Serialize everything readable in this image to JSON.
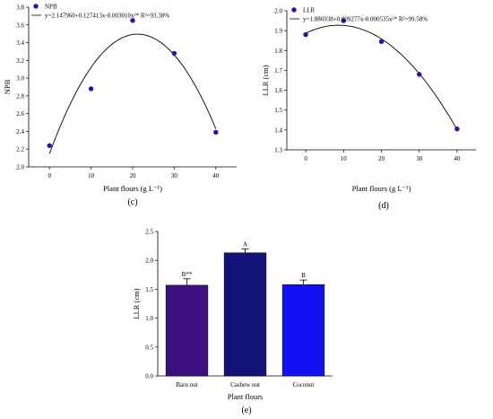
{
  "chart_data": [
    {
      "type": "scatter",
      "id": "c",
      "panel_label": "(c)",
      "xlabel": "Plant flours (g L⁻¹)",
      "ylabel": "NPB",
      "xlim": [
        -5,
        45
      ],
      "ylim": [
        2.0,
        3.8
      ],
      "x_ticks": [
        0,
        10,
        20,
        30,
        40
      ],
      "y_ticks": [
        2.0,
        2.2,
        2.4,
        2.6,
        2.8,
        3.0,
        3.2,
        3.4,
        3.6,
        3.8
      ],
      "y_tick_labels": [
        "2.0",
        "2.2",
        "2.4",
        "2.6",
        "2.8",
        "3.0",
        "3.2",
        "3.4",
        "3.6",
        "3.8"
      ],
      "x": [
        0,
        10,
        20,
        30,
        40
      ],
      "y": [
        2.24,
        2.88,
        3.65,
        3.28,
        2.39
      ],
      "fit": {
        "a": 2.14796,
        "b": 0.127413,
        "c": -0.00301
      },
      "legend_marker": "NPB",
      "legend_fit": "y=2.147960+0.127413x-0.003010x²* R²=93.38%",
      "color": "#1a1aa6"
    },
    {
      "type": "scatter",
      "id": "d",
      "panel_label": "(d)",
      "xlabel": "Plant flours (g L⁻¹)",
      "ylabel": "LLR (cm)",
      "xlim": [
        -5,
        45
      ],
      "ylim": [
        1.3,
        2.0
      ],
      "x_ticks": [
        0,
        10,
        20,
        30,
        40
      ],
      "y_ticks": [
        1.3,
        1.4,
        1.5,
        1.6,
        1.7,
        1.8,
        1.9,
        2.0
      ],
      "y_tick_labels": [
        "1.3",
        "1.4",
        "1.5",
        "1.6",
        "1.7",
        "1.8",
        "1.9",
        "2.0"
      ],
      "x": [
        0,
        10,
        20,
        30,
        40
      ],
      "y": [
        1.88,
        1.95,
        1.845,
        1.68,
        1.405
      ],
      "fit": {
        "a": 1.886938,
        "b": 0.009277,
        "c": -0.000535
      },
      "legend_marker": "LLR",
      "legend_fit": "y=1.886938+0.009277x-0.000535x²* R²=99.58%",
      "color": "#1a1aa6"
    },
    {
      "type": "bar",
      "id": "e",
      "panel_label": "(e)",
      "xlabel": "Plant flours",
      "ylabel": "LLR (cm)",
      "ylim": [
        0.0,
        2.5
      ],
      "y_ticks": [
        0.0,
        0.5,
        1.0,
        1.5,
        2.0,
        2.5
      ],
      "y_tick_labels": [
        "0.0",
        "0.5",
        "1.0",
        "1.5",
        "2.0",
        "2.5"
      ],
      "categories": [
        "Baru nut",
        "Cashew nut",
        "Coconut"
      ],
      "values": [
        1.57,
        2.13,
        1.58
      ],
      "errors": [
        0.11,
        0.07,
        0.08
      ],
      "letters": [
        "B**",
        "A",
        "B"
      ],
      "colors": [
        "#3d1080",
        "#12127a",
        "#1010f0"
      ]
    }
  ]
}
